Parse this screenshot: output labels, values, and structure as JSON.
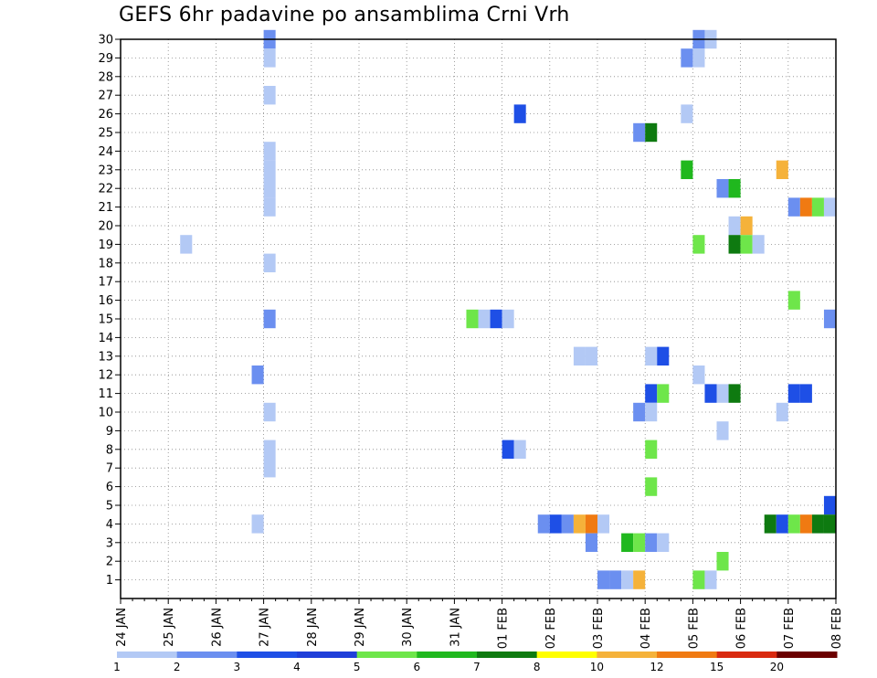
{
  "chart_data": {
    "type": "heatmap",
    "title": "GEFS 6hr padavine po ansamblima Crni Vrh",
    "xlabel": "",
    "ylabel": "",
    "x_ticks": [
      "24 JAN",
      "25 JAN",
      "26 JAN",
      "27 JAN",
      "28 JAN",
      "29 JAN",
      "30 JAN",
      "31 JAN",
      "01 FEB",
      "02 FEB",
      "03 FEB",
      "04 FEB",
      "05 FEB",
      "06 FEB",
      "07 FEB",
      "08 FEB"
    ],
    "xlim_days": [
      0,
      15
    ],
    "y_ticks": [
      1,
      2,
      3,
      4,
      5,
      6,
      7,
      8,
      9,
      10,
      11,
      12,
      13,
      14,
      15,
      16,
      17,
      18,
      19,
      20,
      21,
      22,
      23,
      24,
      25,
      26,
      27,
      28,
      29,
      30
    ],
    "ylim": [
      0,
      30
    ],
    "time_step_hours": 6,
    "grid": true,
    "grid_style": "dotted",
    "colorbar": {
      "position": "bottom",
      "labels": [
        "1",
        "2",
        "3",
        "4",
        "5",
        "6",
        "7",
        "8",
        "10",
        "12",
        "15",
        "20"
      ],
      "colors": [
        "#b3c9f5",
        "#6b8ff0",
        "#1e4fe6",
        "#1f3fd9",
        "#6ee64a",
        "#20b81e",
        "#0e7a10",
        "#ffff00",
        "#f5b23a",
        "#f07a12",
        "#d92a10",
        "#6b0000"
      ]
    },
    "cells": [
      {
        "m": 30,
        "d": 3.0,
        "c": "#6b8ff0"
      },
      {
        "m": 29,
        "d": 3.0,
        "c": "#b3c9f5"
      },
      {
        "m": 27,
        "d": 3.0,
        "c": "#b3c9f5"
      },
      {
        "m": 24,
        "d": 3.0,
        "c": "#b3c9f5"
      },
      {
        "m": 23,
        "d": 3.0,
        "c": "#b3c9f5"
      },
      {
        "m": 22,
        "d": 3.0,
        "c": "#b3c9f5"
      },
      {
        "m": 21,
        "d": 3.0,
        "c": "#b3c9f5"
      },
      {
        "m": 18,
        "d": 3.0,
        "c": "#b3c9f5"
      },
      {
        "m": 15,
        "d": 3.0,
        "c": "#6b8ff0"
      },
      {
        "m": 12,
        "d": 2.75,
        "c": "#6b8ff0"
      },
      {
        "m": 10,
        "d": 3.0,
        "c": "#b3c9f5"
      },
      {
        "m": 8,
        "d": 3.0,
        "c": "#b3c9f5"
      },
      {
        "m": 7,
        "d": 3.0,
        "c": "#b3c9f5"
      },
      {
        "m": 4,
        "d": 2.75,
        "c": "#b3c9f5"
      },
      {
        "m": 19,
        "d": 1.25,
        "c": "#b3c9f5"
      },
      {
        "m": 15,
        "d": 7.25,
        "c": "#6ee64a"
      },
      {
        "m": 15,
        "d": 7.5,
        "c": "#b3c9f5"
      },
      {
        "m": 15,
        "d": 7.75,
        "c": "#1e4fe6"
      },
      {
        "m": 15,
        "d": 8.0,
        "c": "#b3c9f5"
      },
      {
        "m": 26,
        "d": 8.25,
        "c": "#1e4fe6"
      },
      {
        "m": 8,
        "d": 8.0,
        "c": "#1e4fe6"
      },
      {
        "m": 8,
        "d": 8.25,
        "c": "#b3c9f5"
      },
      {
        "m": 4,
        "d": 8.75,
        "c": "#6b8ff0"
      },
      {
        "m": 4,
        "d": 9.0,
        "c": "#1e4fe6"
      },
      {
        "m": 4,
        "d": 9.25,
        "c": "#6b8ff0"
      },
      {
        "m": 4,
        "d": 9.5,
        "c": "#f5b23a"
      },
      {
        "m": 4,
        "d": 9.75,
        "c": "#f07a12"
      },
      {
        "m": 4,
        "d": 10.0,
        "c": "#b3c9f5"
      },
      {
        "m": 13,
        "d": 9.5,
        "c": "#b3c9f5"
      },
      {
        "m": 13,
        "d": 9.75,
        "c": "#b3c9f5"
      },
      {
        "m": 3,
        "d": 9.75,
        "c": "#6b8ff0"
      },
      {
        "m": 1,
        "d": 10.0,
        "c": "#6b8ff0"
      },
      {
        "m": 1,
        "d": 10.25,
        "c": "#6b8ff0"
      },
      {
        "m": 1,
        "d": 10.5,
        "c": "#b3c9f5"
      },
      {
        "m": 1,
        "d": 10.75,
        "c": "#f5b23a"
      },
      {
        "m": 3,
        "d": 10.5,
        "c": "#20b81e"
      },
      {
        "m": 3,
        "d": 10.75,
        "c": "#6ee64a"
      },
      {
        "m": 3,
        "d": 11.0,
        "c": "#6b8ff0"
      },
      {
        "m": 3,
        "d": 11.25,
        "c": "#b3c9f5"
      },
      {
        "m": 25,
        "d": 10.75,
        "c": "#6b8ff0"
      },
      {
        "m": 25,
        "d": 11.0,
        "c": "#0e7a10"
      },
      {
        "m": 13,
        "d": 11.0,
        "c": "#b3c9f5"
      },
      {
        "m": 13,
        "d": 11.25,
        "c": "#1e4fe6"
      },
      {
        "m": 11,
        "d": 11.0,
        "c": "#1e4fe6"
      },
      {
        "m": 11,
        "d": 11.25,
        "c": "#6ee64a"
      },
      {
        "m": 10,
        "d": 10.75,
        "c": "#6b8ff0"
      },
      {
        "m": 10,
        "d": 11.0,
        "c": "#b3c9f5"
      },
      {
        "m": 8,
        "d": 11.0,
        "c": "#6ee64a"
      },
      {
        "m": 6,
        "d": 11.0,
        "c": "#6ee64a"
      },
      {
        "m": 30,
        "d": 12.0,
        "c": "#6b8ff0"
      },
      {
        "m": 30,
        "d": 12.25,
        "c": "#b3c9f5"
      },
      {
        "m": 29,
        "d": 11.75,
        "c": "#6b8ff0"
      },
      {
        "m": 29,
        "d": 12.0,
        "c": "#b3c9f5"
      },
      {
        "m": 26,
        "d": 11.75,
        "c": "#b3c9f5"
      },
      {
        "m": 23,
        "d": 11.75,
        "c": "#20b81e"
      },
      {
        "m": 19,
        "d": 12.0,
        "c": "#6ee64a"
      },
      {
        "m": 12,
        "d": 12.0,
        "c": "#b3c9f5"
      },
      {
        "m": 11,
        "d": 12.25,
        "c": "#1e4fe6"
      },
      {
        "m": 1,
        "d": 12.0,
        "c": "#6ee64a"
      },
      {
        "m": 1,
        "d": 12.25,
        "c": "#b3c9f5"
      },
      {
        "m": 22,
        "d": 12.5,
        "c": "#6b8ff0"
      },
      {
        "m": 22,
        "d": 12.75,
        "c": "#20b81e"
      },
      {
        "m": 20,
        "d": 12.75,
        "c": "#b3c9f5"
      },
      {
        "m": 20,
        "d": 13.0,
        "c": "#f5b23a"
      },
      {
        "m": 19,
        "d": 12.75,
        "c": "#0e7a10"
      },
      {
        "m": 19,
        "d": 13.0,
        "c": "#6ee64a"
      },
      {
        "m": 19,
        "d": 13.25,
        "c": "#b3c9f5"
      },
      {
        "m": 11,
        "d": 12.5,
        "c": "#b3c9f5"
      },
      {
        "m": 11,
        "d": 12.75,
        "c": "#0e7a10"
      },
      {
        "m": 9,
        "d": 12.5,
        "c": "#b3c9f5"
      },
      {
        "m": 2,
        "d": 12.5,
        "c": "#6ee64a"
      },
      {
        "m": 23,
        "d": 13.75,
        "c": "#f5b23a"
      },
      {
        "m": 21,
        "d": 14.0,
        "c": "#6b8ff0"
      },
      {
        "m": 21,
        "d": 14.25,
        "c": "#f07a12"
      },
      {
        "m": 21,
        "d": 14.5,
        "c": "#6ee64a"
      },
      {
        "m": 21,
        "d": 14.75,
        "c": "#b3c9f5"
      },
      {
        "m": 16,
        "d": 14.0,
        "c": "#6ee64a"
      },
      {
        "m": 15,
        "d": 14.75,
        "c": "#6b8ff0"
      },
      {
        "m": 11,
        "d": 14.0,
        "c": "#1e4fe6"
      },
      {
        "m": 11,
        "d": 14.25,
        "c": "#1e4fe6"
      },
      {
        "m": 10,
        "d": 13.75,
        "c": "#b3c9f5"
      },
      {
        "m": 5,
        "d": 14.75,
        "c": "#1e4fe6"
      },
      {
        "m": 4,
        "d": 13.5,
        "c": "#0e7a10"
      },
      {
        "m": 4,
        "d": 13.75,
        "c": "#1e4fe6"
      },
      {
        "m": 4,
        "d": 14.0,
        "c": "#6ee64a"
      },
      {
        "m": 4,
        "d": 14.25,
        "c": "#f07a12"
      },
      {
        "m": 4,
        "d": 14.5,
        "c": "#0e7a10"
      },
      {
        "m": 4,
        "d": 14.75,
        "c": "#0e7a10"
      }
    ]
  }
}
